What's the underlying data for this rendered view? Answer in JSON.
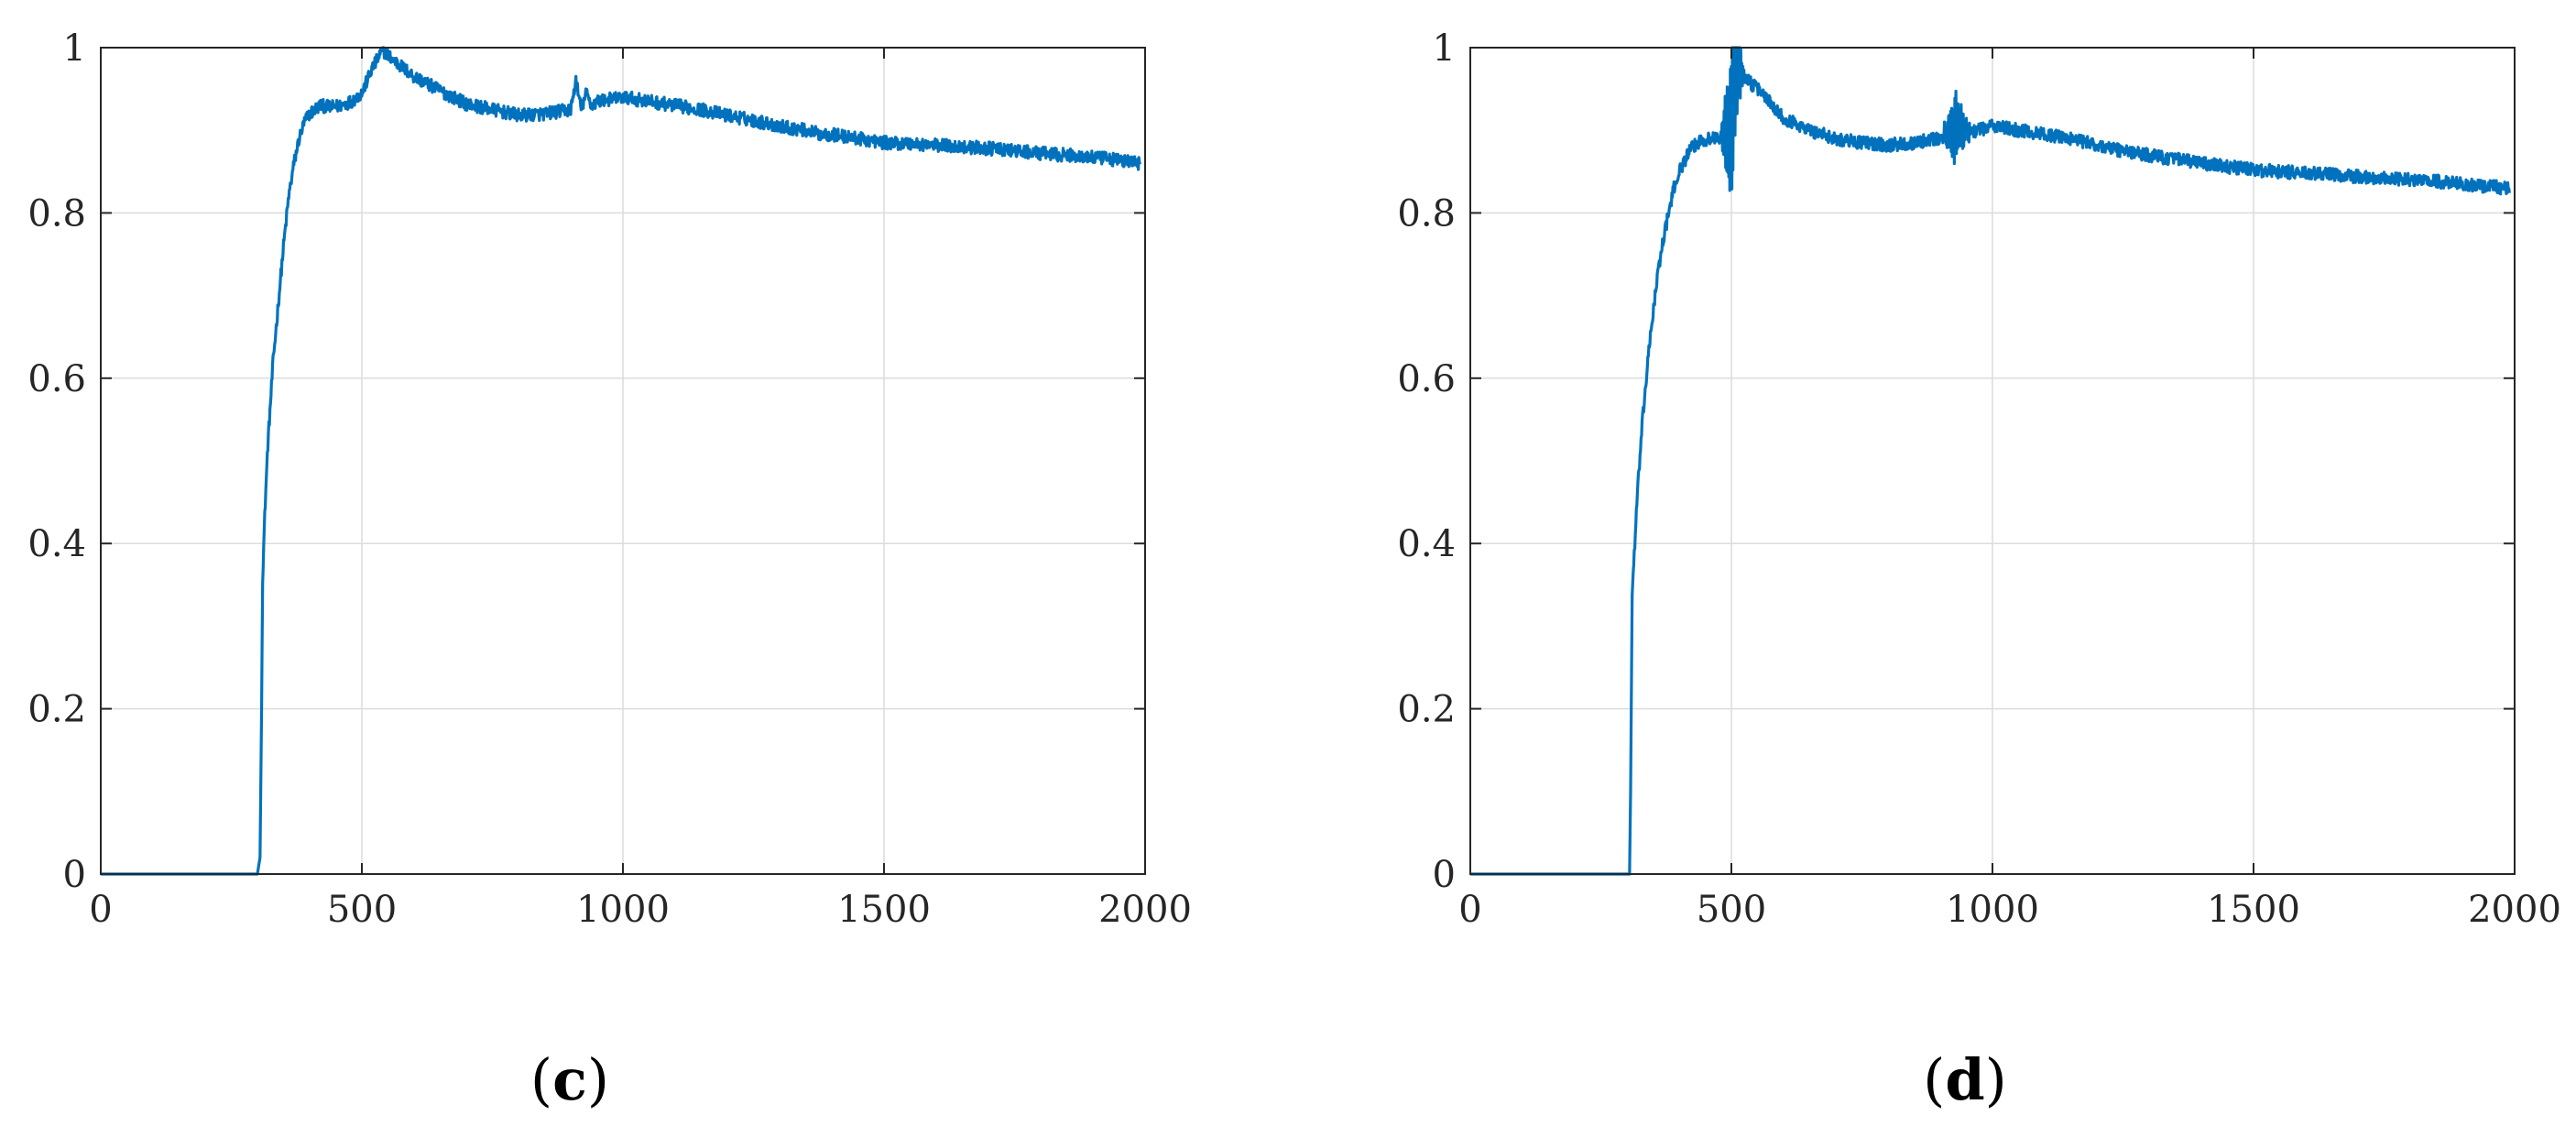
{
  "colors": {
    "series": "#0072BD",
    "axis": "#262626",
    "grid": "#dcdcdc"
  },
  "panels": [
    {
      "caption_open": "(",
      "caption_letter": "c",
      "caption_close": ")"
    },
    {
      "caption_open": "(",
      "caption_letter": "d",
      "caption_close": ")"
    }
  ],
  "chart_data": [
    {
      "type": "line",
      "title": "",
      "xlabel": "",
      "ylabel": "",
      "xlim": [
        0,
        2000
      ],
      "ylim": [
        0,
        1
      ],
      "xticks": [
        0,
        500,
        1000,
        1500,
        2000
      ],
      "xtick_labels": [
        "0",
        "500",
        "1000",
        "1500",
        "2000"
      ],
      "yticks": [
        0,
        0.2,
        0.4,
        0.6,
        0.8,
        1
      ],
      "ytick_labels": [
        "0",
        "0.2",
        "0.4",
        "0.6",
        "0.8",
        "1"
      ],
      "grid": true,
      "series": [
        {
          "color": "#0072BD",
          "x": [
            0,
            300,
            305,
            308,
            310,
            315,
            320,
            330,
            340,
            350,
            360,
            370,
            380,
            390,
            400,
            420,
            440,
            460,
            480,
            500,
            520,
            540,
            560,
            580,
            600,
            650,
            700,
            750,
            800,
            850,
            900,
            910,
            920,
            930,
            940,
            950,
            1000,
            1050,
            1100,
            1150,
            1200,
            1250,
            1300,
            1350,
            1380,
            1400,
            1450,
            1500,
            1550,
            1600,
            1650,
            1700,
            1750,
            1800,
            1850,
            1900,
            1950,
            1990
          ],
          "y": [
            0,
            0,
            0.02,
            0.2,
            0.36,
            0.45,
            0.52,
            0.62,
            0.69,
            0.76,
            0.82,
            0.86,
            0.89,
            0.91,
            0.92,
            0.93,
            0.928,
            0.93,
            0.935,
            0.945,
            0.975,
            0.997,
            0.985,
            0.975,
            0.965,
            0.948,
            0.932,
            0.925,
            0.918,
            0.92,
            0.925,
            0.96,
            0.925,
            0.945,
            0.93,
            0.935,
            0.94,
            0.935,
            0.93,
            0.925,
            0.918,
            0.912,
            0.905,
            0.9,
            0.895,
            0.895,
            0.89,
            0.885,
            0.884,
            0.882,
            0.88,
            0.878,
            0.875,
            0.872,
            0.87,
            0.867,
            0.864,
            0.86
          ],
          "noise_amplitude": 0.008
        }
      ]
    },
    {
      "type": "line",
      "title": "",
      "xlabel": "",
      "ylabel": "",
      "xlim": [
        0,
        2000
      ],
      "ylim": [
        0,
        1
      ],
      "xticks": [
        0,
        500,
        1000,
        1500,
        2000
      ],
      "xtick_labels": [
        "0",
        "500",
        "1000",
        "1500",
        "2000"
      ],
      "yticks": [
        0,
        0.2,
        0.4,
        0.6,
        0.8,
        1
      ],
      "ytick_labels": [
        "0",
        "0.2",
        "0.4",
        "0.6",
        "0.8",
        "1"
      ],
      "grid": true,
      "series": [
        {
          "color": "#0072BD",
          "x": [
            0,
            305,
            307,
            310,
            315,
            320,
            330,
            340,
            350,
            360,
            370,
            380,
            390,
            400,
            420,
            440,
            460,
            480,
            495,
            500,
            505,
            510,
            520,
            540,
            560,
            580,
            600,
            650,
            700,
            750,
            800,
            850,
            900,
            920,
            930,
            940,
            960,
            1000,
            1050,
            1100,
            1150,
            1200,
            1250,
            1300,
            1350,
            1400,
            1450,
            1500,
            1550,
            1600,
            1650,
            1700,
            1750,
            1800,
            1850,
            1900,
            1950,
            1990
          ],
          "y": [
            0,
            0,
            0.1,
            0.34,
            0.4,
            0.46,
            0.55,
            0.62,
            0.68,
            0.73,
            0.77,
            0.8,
            0.83,
            0.85,
            0.875,
            0.888,
            0.89,
            0.892,
            0.9,
            0.9,
            0.96,
            0.98,
            0.97,
            0.955,
            0.945,
            0.93,
            0.915,
            0.9,
            0.89,
            0.885,
            0.882,
            0.885,
            0.89,
            0.9,
            0.905,
            0.9,
            0.898,
            0.905,
            0.9,
            0.895,
            0.89,
            0.882,
            0.875,
            0.87,
            0.865,
            0.86,
            0.856,
            0.852,
            0.85,
            0.848,
            0.846,
            0.844,
            0.842,
            0.84,
            0.838,
            0.835,
            0.832,
            0.83
          ],
          "noise_amplitude": 0.008,
          "bursts": [
            {
              "x_start": 478,
              "x_end": 525,
              "amplitude": 0.1
            },
            {
              "x_start": 900,
              "x_end": 960,
              "amplitude": 0.04
            }
          ]
        }
      ]
    }
  ]
}
